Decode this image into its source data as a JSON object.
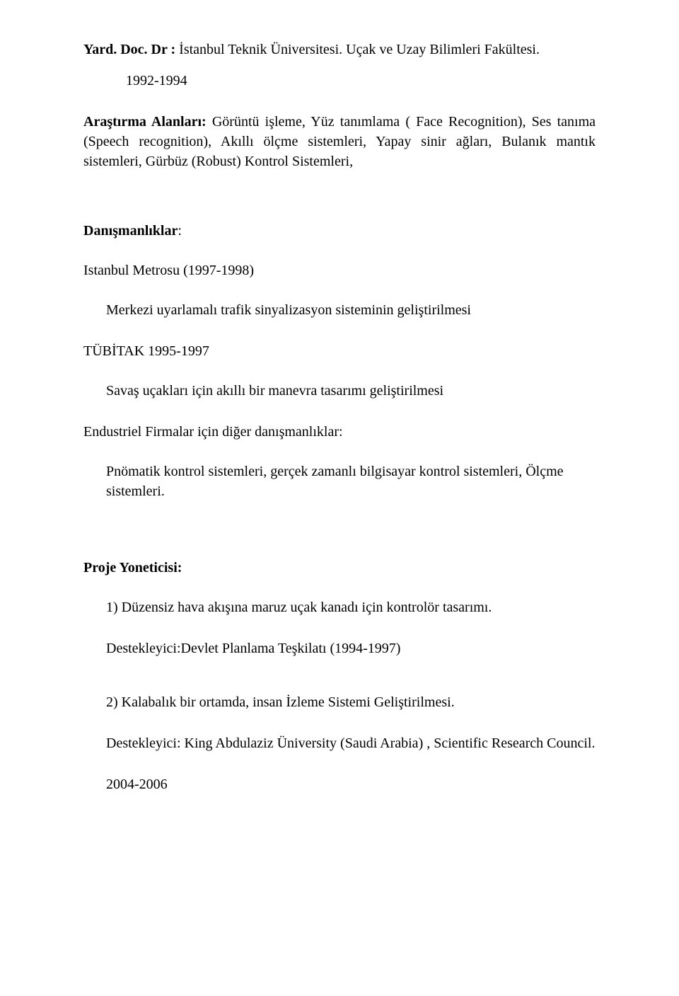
{
  "title_label": "Yard. Doc. Dr :",
  "title_rest": " İstanbul Teknik Üniversitesi. Uçak ve Uzay Bilimleri Fakültesi.",
  "title_years": "1992-1994",
  "arastirma_label": "Araştırma Alanları:",
  "arastirma_text": " Görüntü işleme,  Yüz tanımlama ( Face  Recognition), Ses tanıma (Speech recognition), Akıllı ölçme sistemleri, Yapay sinir ağları, Bulanık mantık sistemleri, Gürbüz (Robust) Kontrol  Sistemleri,",
  "danismanliklar_heading": "Danışmanlıklar",
  "colon": ":",
  "istanbul_line": "Istanbul  Metrosu (1997-1998)",
  "istanbul_sub": "Merkezi  uyarlamalı trafik sinyalizasyon sisteminin geliştirilmesi",
  "tubitak_line": "TÜBİTAK 1995-1997",
  "tubitak_sub": "Savaş uçakları için akıllı bir manevra tasarımı geliştirilmesi",
  "endustri_line": "Endustriel Firmalar için diğer danışmanlıklar:",
  "endustri_sub": "Pnömatik kontrol sistemleri, gerçek zamanlı bilgisayar kontrol sistemleri,  Ölçme sistemleri.",
  "proje_heading": "Proje Yoneticisi:",
  "proje1_line": "1) Düzensiz hava akışına maruz  uçak kanadı için kontrolör tasarımı.",
  "proje1_sponsor": "Destekleyici:Devlet Planlama Teşkilatı (1994-1997)",
  "proje2_line": "2) Kalabalık bir ortamda,  insan İzleme Sistemi Geliştirilmesi.",
  "proje2_sponsor": "Destekleyici:  King Abdulaziz Üniversity (Saudi Arabia) , Scientific Research Council.",
  "proje2_years": "2004-2006"
}
